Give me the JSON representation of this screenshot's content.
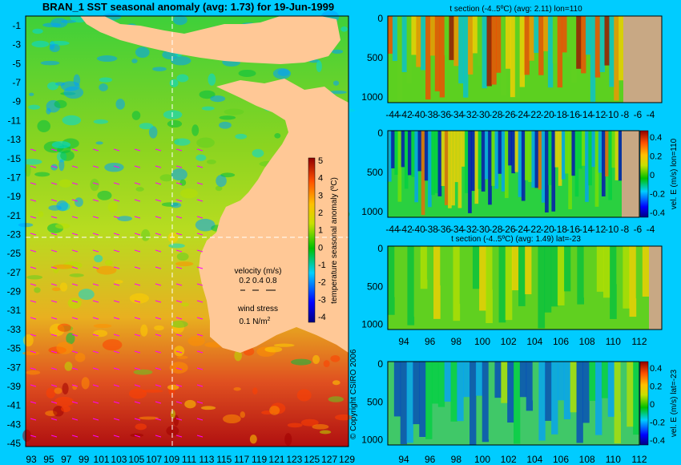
{
  "chart_data": [
    {
      "type": "heatmap",
      "title": "BRAN_1 SST seasonal anomaly (avg: 1.73) for 19-Jun-1999",
      "x_ticks": [
        "93",
        "95",
        "97",
        "99",
        "101",
        "103",
        "105",
        "107",
        "109",
        "111",
        "113",
        "115",
        "117",
        "119",
        "121",
        "123",
        "125",
        "127",
        "129"
      ],
      "y_ticks": [
        "-1",
        "-3",
        "-5",
        "-7",
        "-9",
        "-11",
        "-13",
        "-15",
        "-17",
        "-19",
        "-21",
        "-23",
        "-25",
        "-27",
        "-29",
        "-31",
        "-33",
        "-35",
        "-37",
        "-39",
        "-41",
        "-43",
        "-45"
      ],
      "xlim": [
        93,
        130
      ],
      "ylim": [
        -45,
        0
      ],
      "section_lines": {
        "lon": 110,
        "lat": -23
      },
      "colorbar": {
        "label": "temperature seasonal anomaly (ºC)",
        "ticks": [
          "5",
          "4",
          "3",
          "2",
          "1",
          "0",
          "-1",
          "-2",
          "-3",
          "-4"
        ],
        "range": [
          -4,
          5
        ]
      },
      "velocity_legend": {
        "label": "velocity (m/s)",
        "values": "0.2 0.4 0.8"
      },
      "wind_legend": {
        "label": "wind stress",
        "value": "0.1 N/m",
        "exp": "2"
      },
      "copyright": "© Copyright CSIRO 2006"
    },
    {
      "type": "heatmap",
      "title": "t section (-4..5ºC) (avg: 2.11) lon=110",
      "x_ticks": [
        "-44",
        "-42",
        "-40",
        "-38",
        "-36",
        "-34",
        "-32",
        "-30",
        "-28",
        "-26",
        "-24",
        "-22",
        "-20",
        "-18",
        "-16",
        "-14",
        "-12",
        "-10",
        "-8",
        "-6",
        "-4"
      ],
      "y_ticks": [
        "0",
        "500",
        "1000"
      ]
    },
    {
      "type": "heatmap",
      "colorbar_label": "vel. E (m/s) lon=110",
      "colorbar_ticks": [
        "0.4",
        "0.2",
        "0",
        "-0.2",
        "-0.4"
      ],
      "x_ticks": [
        "-44",
        "-42",
        "-40",
        "-38",
        "-36",
        "-34",
        "-32",
        "-30",
        "-28",
        "-26",
        "-24",
        "-22",
        "-20",
        "-18",
        "-16",
        "-14",
        "-12",
        "-10",
        "-8",
        "-6",
        "-4"
      ],
      "y_ticks": [
        "0",
        "500",
        "1000"
      ]
    },
    {
      "type": "heatmap",
      "title": "t section (-4..5ºC) (avg: 1.49) lat=-23",
      "x_ticks": [
        "94",
        "96",
        "98",
        "100",
        "102",
        "104",
        "106",
        "108",
        "110",
        "112"
      ],
      "y_ticks": [
        "0",
        "500",
        "1000"
      ]
    },
    {
      "type": "heatmap",
      "colorbar_label": "vel. E (m/s) lat=-23",
      "colorbar_ticks": [
        "0.4",
        "0.2",
        "0",
        "-0.2",
        "-0.4"
      ],
      "x_ticks": [
        "94",
        "96",
        "98",
        "100",
        "102",
        "104",
        "106",
        "108",
        "110",
        "112"
      ],
      "y_ticks": [
        "0",
        "500",
        "1000"
      ]
    }
  ]
}
